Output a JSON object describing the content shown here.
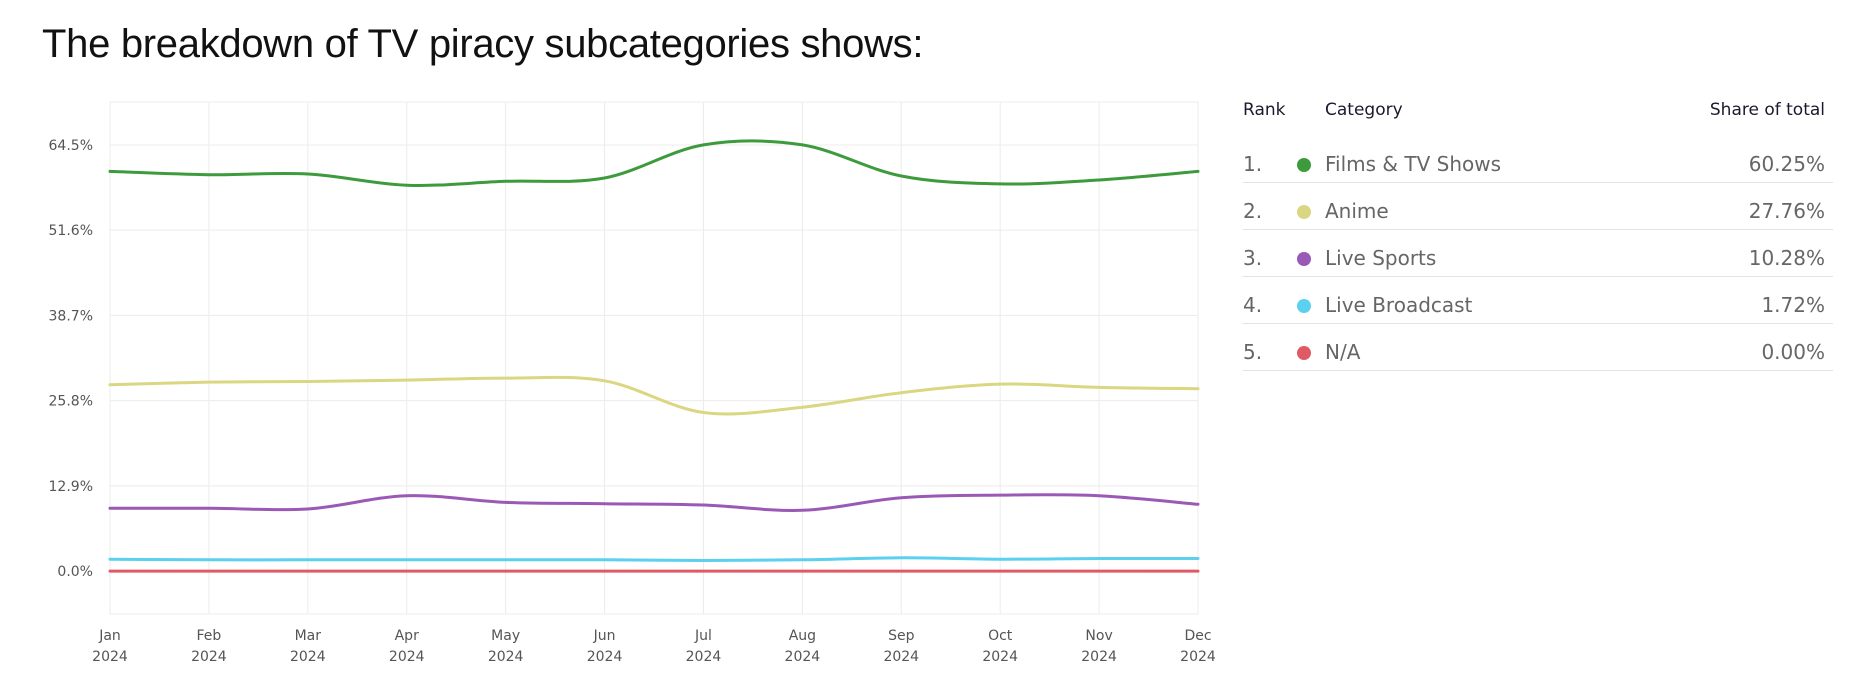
{
  "title": "The breakdown of TV piracy subcategories shows:",
  "chart_data": {
    "type": "line",
    "title": "",
    "xlabel": "",
    "ylabel": "",
    "x_ticks": [
      {
        "month": "Jan",
        "year": "2024"
      },
      {
        "month": "Feb",
        "year": "2024"
      },
      {
        "month": "Mar",
        "year": "2024"
      },
      {
        "month": "Apr",
        "year": "2024"
      },
      {
        "month": "May",
        "year": "2024"
      },
      {
        "month": "Jun",
        "year": "2024"
      },
      {
        "month": "Jul",
        "year": "2024"
      },
      {
        "month": "Aug",
        "year": "2024"
      },
      {
        "month": "Sep",
        "year": "2024"
      },
      {
        "month": "Oct",
        "year": "2024"
      },
      {
        "month": "Nov",
        "year": "2024"
      },
      {
        "month": "Dec",
        "year": "2024"
      }
    ],
    "y_ticks": [
      {
        "value": 0,
        "label": "0.0%"
      },
      {
        "value": 12.9,
        "label": "12.9%"
      },
      {
        "value": 25.8,
        "label": "25.8%"
      },
      {
        "value": 38.7,
        "label": "38.7%"
      },
      {
        "value": 51.6,
        "label": "51.6%"
      },
      {
        "value": 64.5,
        "label": "64.5%"
      }
    ],
    "ylim": [
      -6.5,
      71
    ],
    "grid": true,
    "series": [
      {
        "name": "Films & TV Shows",
        "color": "#3d9a3d",
        "values": [
          60.5,
          60.0,
          60.1,
          58.4,
          59.0,
          59.5,
          64.5,
          64.5,
          59.8,
          58.6,
          59.2,
          60.5
        ]
      },
      {
        "name": "Anime",
        "color": "#dbd681",
        "values": [
          28.2,
          28.6,
          28.7,
          28.9,
          29.2,
          28.8,
          24.0,
          24.8,
          27.0,
          28.3,
          27.8,
          27.6
        ]
      },
      {
        "name": "Live Sports",
        "color": "#9b59b6",
        "values": [
          9.5,
          9.5,
          9.4,
          11.4,
          10.4,
          10.2,
          10.0,
          9.2,
          11.1,
          11.5,
          11.4,
          10.1
        ]
      },
      {
        "name": "Live Broadcast",
        "color": "#5bd0ef",
        "values": [
          1.8,
          1.7,
          1.7,
          1.7,
          1.7,
          1.7,
          1.6,
          1.7,
          2.0,
          1.8,
          1.9,
          1.9
        ]
      },
      {
        "name": "N/A",
        "color": "#e05a65",
        "values": [
          0,
          0,
          0,
          0,
          0,
          0,
          0,
          0,
          0,
          0,
          0,
          0
        ]
      }
    ]
  },
  "legend": {
    "headers": {
      "rank": "Rank",
      "category": "Category",
      "share": "Share of total"
    },
    "rows": [
      {
        "rank": "1.",
        "name": "Films & TV Shows",
        "share": "60.25%",
        "color": "#3d9a3d"
      },
      {
        "rank": "2.",
        "name": "Anime",
        "share": "27.76%",
        "color": "#dbd681"
      },
      {
        "rank": "3.",
        "name": "Live Sports",
        "share": "10.28%",
        "color": "#9b59b6"
      },
      {
        "rank": "4.",
        "name": "Live Broadcast",
        "share": "1.72%",
        "color": "#5bd0ef"
      },
      {
        "rank": "5.",
        "name": "N/A",
        "share": "0.00%",
        "color": "#e05a65"
      }
    ]
  }
}
